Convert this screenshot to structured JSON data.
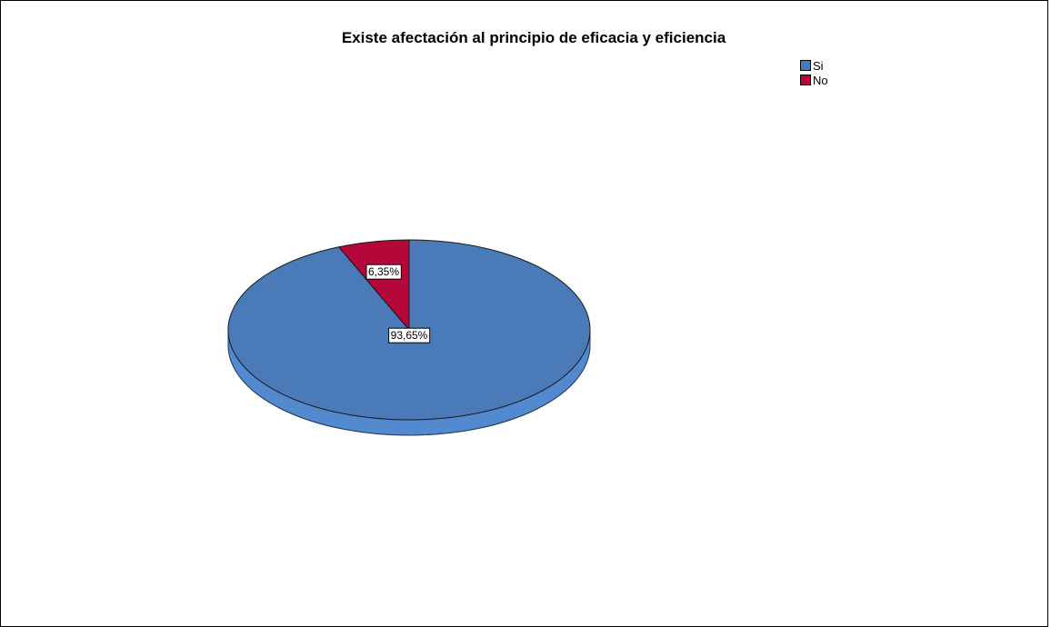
{
  "chart_data": {
    "type": "pie",
    "title": "Existe afectación al principio de eficacia y eficiencia",
    "categories": [
      "Si",
      "No"
    ],
    "values": [
      93.65,
      6.35
    ],
    "data_labels": [
      "93,65%",
      "6,35%"
    ],
    "colors": [
      "#4a7ab8",
      "#b5083a"
    ],
    "three_d": true,
    "legend_position": "top-right",
    "legend": [
      {
        "label": "Si",
        "color": "#4a7ab8"
      },
      {
        "label": "No",
        "color": "#b5083a"
      }
    ]
  }
}
